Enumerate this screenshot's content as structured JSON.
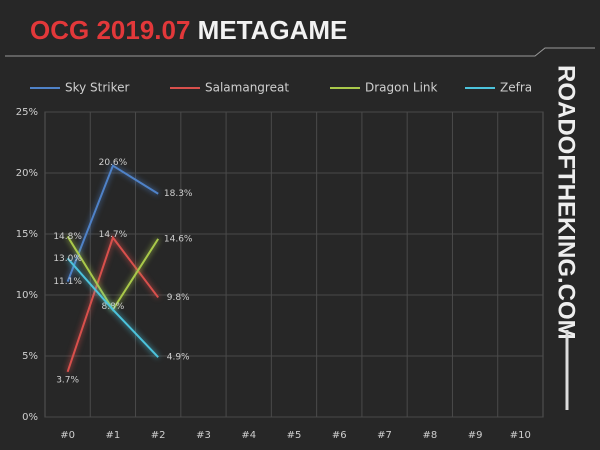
{
  "chart_data": {
    "type": "line",
    "title": [
      "OCG 2019.07",
      "METAGAME"
    ],
    "side_text": "ROADOFTHEKING.COM",
    "categories": [
      "#0",
      "#1",
      "#2",
      "#3",
      "#4",
      "#5",
      "#6",
      "#7",
      "#8",
      "#9",
      "#10"
    ],
    "series": [
      {
        "name": "Sky Striker",
        "color": "#4f82c8",
        "values": [
          11.1,
          20.6,
          18.3,
          null,
          null,
          null,
          null,
          null,
          null,
          null,
          null
        ],
        "value_labels": [
          "11.1%",
          "20.6%",
          "18.3%",
          null,
          null,
          null,
          null,
          null,
          null,
          null,
          null
        ]
      },
      {
        "name": "Salamangreat",
        "color": "#d9504c",
        "values": [
          3.7,
          14.7,
          9.8,
          null,
          null,
          null,
          null,
          null,
          null,
          null,
          null
        ],
        "value_labels": [
          "3.7%",
          "14.7%",
          "9.8%",
          null,
          null,
          null,
          null,
          null,
          null,
          null,
          null
        ]
      },
      {
        "name": "Dragon Link",
        "color": "#a9c94a",
        "values": [
          14.8,
          8.8,
          14.6,
          null,
          null,
          null,
          null,
          null,
          null,
          null,
          null
        ],
        "value_labels": [
          "14.8%",
          "8.8%",
          "14.6%",
          null,
          null,
          null,
          null,
          null,
          null,
          null,
          null
        ]
      },
      {
        "name": "Zefra",
        "color": "#4cc3dc",
        "values": [
          13.0,
          8.8,
          4.9,
          null,
          null,
          null,
          null,
          null,
          null,
          null,
          null
        ],
        "value_labels": [
          "13.0%",
          null,
          "4.9%",
          null,
          null,
          null,
          null,
          null,
          null,
          null,
          null
        ]
      }
    ],
    "ylim": [
      0,
      25
    ],
    "yticks": [
      {
        "value": 0,
        "label": "0%"
      },
      {
        "value": 5,
        "label": "5%"
      },
      {
        "value": 10,
        "label": "10%"
      },
      {
        "value": 15,
        "label": "15%"
      },
      {
        "value": 20,
        "label": "20%"
      },
      {
        "value": 25,
        "label": "25%"
      }
    ],
    "grid": true
  }
}
